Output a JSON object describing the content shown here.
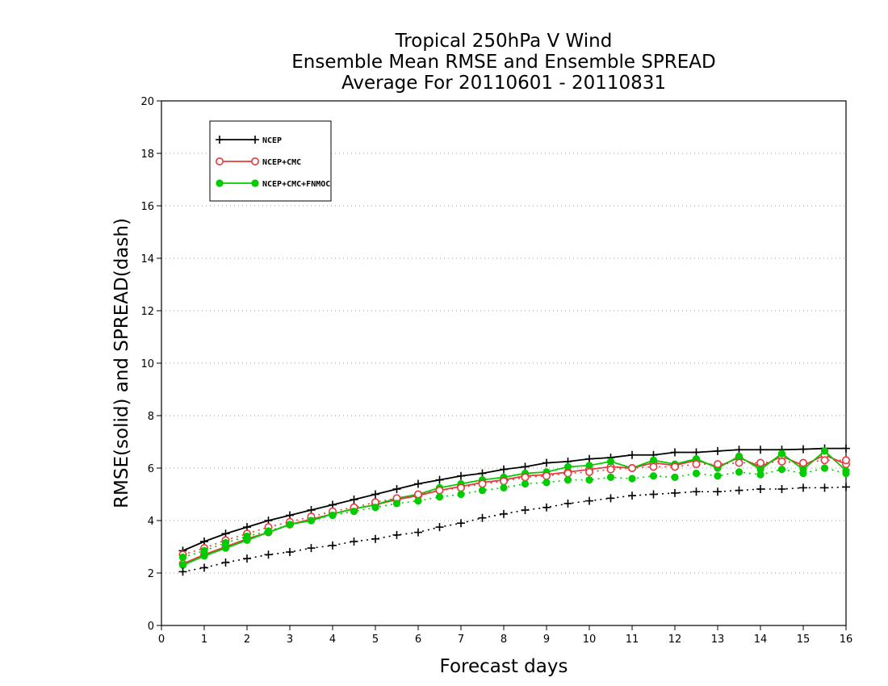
{
  "chart_data": {
    "type": "line",
    "title": [
      "Tropical 250hPa V Wind",
      "Ensemble Mean RMSE and Ensemble SPREAD",
      "Average For 20110601 - 20110831"
    ],
    "xlabel": "Forecast days",
    "ylabel": "RMSE(solid) and SPREAD(dash)",
    "xlim": [
      0,
      16
    ],
    "ylim": [
      0,
      20
    ],
    "xticks": [
      "0",
      "1",
      "2",
      "3",
      "4",
      "5",
      "6",
      "7",
      "8",
      "9",
      "10",
      "11",
      "12",
      "13",
      "14",
      "15",
      "16"
    ],
    "yticks": [
      "0",
      "2",
      "4",
      "6",
      "8",
      "10",
      "12",
      "14",
      "16",
      "18",
      "20"
    ],
    "grid": "horizontal dotted",
    "legend_position": "top-left",
    "x": [
      0.5,
      1,
      1.5,
      2,
      2.5,
      3,
      3.5,
      4,
      4.5,
      5,
      5.5,
      6,
      6.5,
      7,
      7.5,
      8,
      8.5,
      9,
      9.5,
      10,
      10.5,
      11,
      11.5,
      12,
      12.5,
      13,
      13.5,
      14,
      14.5,
      15,
      15.5,
      16
    ],
    "series": [
      {
        "name": "NCEP",
        "kind": "rmse",
        "color": "#000000",
        "marker": "plus",
        "values": [
          2.85,
          3.2,
          3.5,
          3.75,
          4.0,
          4.2,
          4.4,
          4.6,
          4.8,
          5.0,
          5.2,
          5.4,
          5.55,
          5.7,
          5.8,
          5.95,
          6.05,
          6.2,
          6.25,
          6.35,
          6.4,
          6.5,
          6.5,
          6.6,
          6.6,
          6.65,
          6.7,
          6.7,
          6.7,
          6.72,
          6.75,
          6.75
        ]
      },
      {
        "name": "NCEP+CMC",
        "kind": "rmse",
        "color": "#e8393c",
        "marker": "open-circle",
        "values": [
          2.35,
          2.7,
          3.0,
          3.3,
          3.55,
          3.85,
          4.05,
          4.25,
          4.45,
          4.6,
          4.8,
          4.95,
          5.15,
          5.3,
          5.45,
          5.55,
          5.7,
          5.75,
          5.85,
          5.95,
          6.05,
          6.0,
          6.2,
          6.1,
          6.3,
          6.05,
          6.4,
          6.05,
          6.45,
          6.1,
          6.5,
          6.15
        ]
      },
      {
        "name": "NCEP+CMC+FNMOC",
        "kind": "rmse",
        "color": "#00cc00",
        "marker": "filled-circle",
        "values": [
          2.3,
          2.65,
          2.95,
          3.25,
          3.55,
          3.85,
          4.0,
          4.25,
          4.45,
          4.6,
          4.85,
          5.0,
          5.25,
          5.4,
          5.55,
          5.65,
          5.8,
          5.85,
          6.05,
          6.1,
          6.25,
          6.0,
          6.3,
          6.15,
          6.35,
          6.0,
          6.45,
          5.95,
          6.55,
          5.95,
          6.65,
          5.9
        ]
      },
      {
        "name": "NCEP",
        "kind": "spread",
        "color": "#000000",
        "marker": "plus",
        "values": [
          2.05,
          2.2,
          2.4,
          2.55,
          2.7,
          2.8,
          2.95,
          3.05,
          3.2,
          3.3,
          3.45,
          3.55,
          3.75,
          3.9,
          4.1,
          4.25,
          4.4,
          4.5,
          4.65,
          4.75,
          4.85,
          4.95,
          5.0,
          5.05,
          5.1,
          5.1,
          5.15,
          5.2,
          5.2,
          5.25,
          5.25,
          5.28
        ]
      },
      {
        "name": "NCEP+CMC",
        "kind": "spread",
        "color": "#e8393c",
        "marker": "open-circle",
        "values": [
          2.7,
          2.95,
          3.25,
          3.5,
          3.75,
          3.95,
          4.15,
          4.35,
          4.5,
          4.7,
          4.85,
          5.0,
          5.15,
          5.25,
          5.4,
          5.5,
          5.65,
          5.7,
          5.8,
          5.85,
          5.95,
          6.0,
          6.05,
          6.05,
          6.15,
          6.15,
          6.2,
          6.2,
          6.25,
          6.2,
          6.3,
          6.3
        ]
      },
      {
        "name": "NCEP+CMC+FNMOC",
        "kind": "spread",
        "color": "#00cc00",
        "marker": "filled-circle",
        "values": [
          2.6,
          2.85,
          3.15,
          3.4,
          3.6,
          3.85,
          4.0,
          4.2,
          4.35,
          4.5,
          4.65,
          4.75,
          4.9,
          5.0,
          5.15,
          5.25,
          5.4,
          5.45,
          5.55,
          5.55,
          5.65,
          5.6,
          5.7,
          5.65,
          5.8,
          5.7,
          5.85,
          5.75,
          5.95,
          5.8,
          6.0,
          5.8
        ]
      }
    ]
  }
}
